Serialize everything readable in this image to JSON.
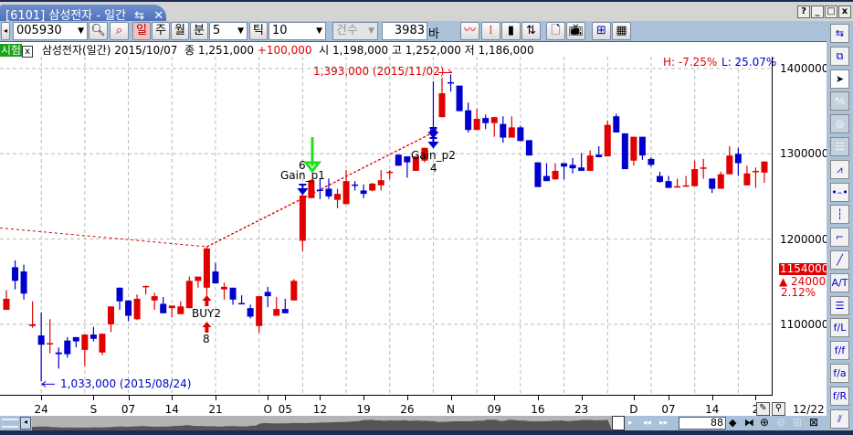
{
  "window": {
    "tab_title": "[6101] 삼성전자 - 일간",
    "controls": [
      "?",
      "_",
      "□",
      "x"
    ]
  },
  "toolbar": {
    "code": "005930",
    "period_buttons": [
      "일",
      "주",
      "월",
      "분"
    ],
    "active_period": "일",
    "minute_value": "5",
    "tick_label": "틱",
    "tick_value": "10",
    "count_combo": "건수",
    "bar_count": "3983",
    "bar_unit": "바"
  },
  "info": {
    "badge": "시험",
    "close_x": "x",
    "name_date": "삼성전자(일간) 2015/10/07",
    "close_label": "종 1,251,000",
    "change": "+100,000",
    "ohl": "시 1,198,000 고 1,252,000 저 1,186,000"
  },
  "stats": {
    "high_pct": "H: -7.25%",
    "low_pct": "L: 25.07%"
  },
  "annotations": {
    "high_label": "1,393,000 (2015/11/02)",
    "low_label": "1,033,000 (2015/08/24)"
  },
  "signals": {
    "buy": {
      "label": "BUY2",
      "count": "8",
      "candle": 24
    },
    "gain1": {
      "label": "Gain_p1",
      "count": "6",
      "candle": 35
    },
    "gain2": {
      "label": "Gain_p2",
      "count": "4",
      "candle": 50
    }
  },
  "current_price": {
    "price": "1154000",
    "change": "▲ 24000",
    "pct": "2.12%"
  },
  "bottom": {
    "date": "12/22",
    "visible_count": "88"
  },
  "colors": {
    "up": "#e00000",
    "down": "#0000cc",
    "trend": "#e00000"
  },
  "chart_data": {
    "type": "candlestick",
    "ylim": [
      1000000,
      1425000
    ],
    "y_ticks": [
      "1400000",
      "1300000",
      "1200000",
      "1100000"
    ],
    "x_ticks": [
      {
        "label": "24",
        "candle": 5
      },
      {
        "label": "S",
        "candle": 11
      },
      {
        "label": "07",
        "candle": 15
      },
      {
        "label": "14",
        "candle": 20
      },
      {
        "label": "21",
        "candle": 25
      },
      {
        "label": "O",
        "candle": 31
      },
      {
        "label": "05",
        "candle": 33
      },
      {
        "label": "12",
        "candle": 37
      },
      {
        "label": "19",
        "candle": 42
      },
      {
        "label": "26",
        "candle": 47
      },
      {
        "label": "N",
        "candle": 52
      },
      {
        "label": "09",
        "candle": 57
      },
      {
        "label": "16",
        "candle": 62
      },
      {
        "label": "23",
        "candle": 67
      },
      {
        "label": "D",
        "candle": 73
      },
      {
        "label": "07",
        "candle": 77
      },
      {
        "label": "14",
        "candle": 82
      },
      {
        "label": "2",
        "candle": 87
      }
    ],
    "grid": true,
    "trendline": [
      [
        1,
        1213000
      ],
      [
        24,
        1191000
      ],
      [
        50,
        1325000
      ]
    ],
    "ohlc": [
      [
        1117000,
        1140000,
        1117000,
        1130000
      ],
      [
        1167000,
        1175000,
        1141000,
        1151000
      ],
      [
        1162000,
        1170000,
        1129000,
        1136000
      ],
      [
        1098000,
        1127000,
        1096000,
        1100000
      ],
      [
        1087000,
        1114000,
        1033000,
        1076000
      ],
      [
        1077000,
        1106000,
        1066000,
        1078000
      ],
      [
        1067000,
        1073000,
        1048000,
        1065000
      ],
      [
        1081000,
        1085000,
        1061000,
        1065000
      ],
      [
        1085000,
        1085000,
        1073000,
        1080000
      ],
      [
        1070000,
        1088000,
        1051000,
        1088000
      ],
      [
        1088000,
        1097000,
        1080000,
        1083000
      ],
      [
        1067000,
        1089000,
        1064000,
        1089000
      ],
      [
        1100000,
        1121000,
        1091000,
        1121000
      ],
      [
        1143000,
        1143000,
        1117000,
        1127000
      ],
      [
        1128000,
        1128000,
        1104000,
        1110000
      ],
      [
        1106000,
        1135000,
        1105000,
        1130000
      ],
      [
        1144000,
        1145000,
        1135000,
        1145000
      ],
      [
        1128000,
        1137000,
        1117000,
        1133000
      ],
      [
        1124000,
        1132000,
        1113000,
        1113000
      ],
      [
        1119000,
        1122000,
        1108000,
        1122000
      ],
      [
        1112000,
        1127000,
        1112000,
        1121000
      ],
      [
        1119000,
        1156000,
        1119000,
        1151000
      ],
      [
        1151000,
        1156000,
        1143000,
        1156000
      ],
      [
        1143000,
        1191000,
        1134000,
        1189000
      ],
      [
        1162000,
        1172000,
        1148000,
        1148000
      ],
      [
        1141000,
        1149000,
        1129000,
        1144000
      ],
      [
        1143000,
        1143000,
        1123000,
        1129000
      ],
      [
        1125000,
        1134000,
        1124000,
        1124000
      ],
      [
        1119000,
        1123000,
        1107000,
        1109000
      ],
      [
        1098000,
        1133000,
        1090000,
        1133000
      ],
      [
        1138000,
        1144000,
        1120000,
        1133000
      ],
      [
        1110000,
        1132000,
        1110000,
        1118000
      ],
      [
        1118000,
        1130000,
        1113000,
        1113000
      ],
      [
        1128000,
        1153000,
        1128000,
        1151000
      ],
      [
        1198000,
        1252000,
        1186000,
        1251000
      ],
      [
        1248000,
        1270000,
        1248000,
        1269000
      ],
      [
        1258000,
        1271000,
        1247000,
        1257000
      ],
      [
        1259000,
        1271000,
        1247000,
        1250000
      ],
      [
        1246000,
        1259000,
        1236000,
        1253000
      ],
      [
        1241000,
        1281000,
        1241000,
        1268000
      ],
      [
        1264000,
        1268000,
        1257000,
        1263000
      ],
      [
        1257000,
        1264000,
        1248000,
        1253000
      ],
      [
        1257000,
        1266000,
        1256000,
        1265000
      ],
      [
        1263000,
        1281000,
        1257000,
        1269000
      ],
      [
        1278000,
        1281000,
        1270000,
        1279000
      ],
      [
        1299000,
        1299000,
        1286000,
        1286000
      ],
      [
        1297000,
        1297000,
        1272000,
        1290000
      ],
      [
        1280000,
        1297000,
        1280000,
        1297000
      ],
      [
        1292000,
        1307000,
        1290000,
        1307000
      ],
      [
        1329000,
        1385000,
        1323000,
        1323000
      ],
      [
        1343000,
        1389000,
        1343000,
        1371000
      ],
      [
        1384000,
        1393000,
        1373000,
        1383000
      ],
      [
        1380000,
        1380000,
        1350000,
        1350000
      ],
      [
        1351000,
        1360000,
        1325000,
        1328000
      ],
      [
        1328000,
        1353000,
        1328000,
        1341000
      ],
      [
        1342000,
        1346000,
        1329000,
        1336000
      ],
      [
        1336000,
        1343000,
        1320000,
        1343000
      ],
      [
        1335000,
        1344000,
        1313000,
        1319000
      ],
      [
        1319000,
        1344000,
        1319000,
        1331000
      ],
      [
        1331000,
        1333000,
        1315000,
        1315000
      ],
      [
        1316000,
        1316000,
        1298000,
        1298000
      ],
      [
        1290000,
        1290000,
        1261000,
        1261000
      ],
      [
        1274000,
        1289000,
        1268000,
        1268000
      ],
      [
        1270000,
        1289000,
        1270000,
        1280000
      ],
      [
        1289000,
        1289000,
        1270000,
        1285000
      ],
      [
        1287000,
        1295000,
        1277000,
        1283000
      ],
      [
        1284000,
        1301000,
        1280000,
        1280000
      ],
      [
        1280000,
        1304000,
        1280000,
        1298000
      ],
      [
        1299000,
        1309000,
        1296000,
        1296000
      ],
      [
        1297000,
        1339000,
        1297000,
        1334000
      ],
      [
        1344000,
        1347000,
        1325000,
        1325000
      ],
      [
        1324000,
        1324000,
        1282000,
        1282000
      ],
      [
        1292000,
        1320000,
        1286000,
        1320000
      ],
      [
        1320000,
        1320000,
        1293000,
        1298000
      ],
      [
        1294000,
        1296000,
        1285000,
        1287000
      ],
      [
        1274000,
        1279000,
        1266000,
        1267000
      ],
      [
        1268000,
        1274000,
        1260000,
        1260000
      ],
      [
        1261000,
        1271000,
        1261000,
        1262000
      ],
      [
        1262000,
        1274000,
        1262000,
        1263000
      ],
      [
        1262000,
        1292000,
        1262000,
        1282000
      ],
      [
        1283000,
        1294000,
        1271000,
        1284000
      ],
      [
        1271000,
        1271000,
        1254000,
        1259000
      ],
      [
        1259000,
        1279000,
        1259000,
        1276000
      ],
      [
        1276000,
        1309000,
        1276000,
        1298000
      ],
      [
        1300000,
        1307000,
        1274000,
        1289000
      ],
      [
        1263000,
        1286000,
        1263000,
        1277000
      ],
      [
        1279000,
        1284000,
        1260000,
        1280000
      ],
      [
        1278000,
        1291000,
        1266000,
        1291000
      ]
    ]
  },
  "sidebar": {
    "tools": [
      "refresh-icon",
      "grid-split-icon",
      "cursor-icon",
      "fibo-icon",
      "circle-icon",
      "pattern-icon",
      "line-chart-icon",
      "horizontal-line-icon",
      "vertical-line-icon",
      "segment-icon",
      "trend-line-icon",
      "text-line-icon",
      "parallel-lines-icon",
      "fibo-retrace-icon",
      "fibo-fan-icon",
      "fibo-arc-icon",
      "fibo-time-icon",
      "channel-icon"
    ]
  }
}
